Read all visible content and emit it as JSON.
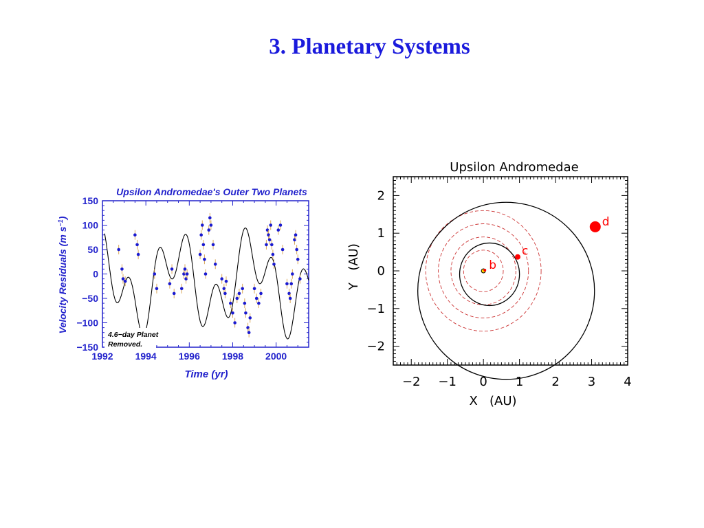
{
  "slide": {
    "title": "3. Planetary Systems"
  },
  "chart_data": [
    {
      "type": "scatter",
      "title": "Upsilon Andromedae's Outer Two Planets",
      "xlabel": "Time  (yr)",
      "ylabel": "Velocity Residuals  (m s",
      "ylabel_sup": "−1",
      "ylabel_close": ")",
      "xlim": [
        1992,
        2001.5
      ],
      "ylim": [
        -150,
        150
      ],
      "x_ticks": [
        1992,
        1994,
        1996,
        1998,
        2000
      ],
      "x_tick_labels": [
        "1992",
        "1994",
        "1996",
        "1998",
        "2000"
      ],
      "y_ticks": [
        150,
        100,
        50,
        0,
        -50,
        -100,
        -150
      ],
      "y_tick_labels": [
        "150",
        "100",
        "50",
        "0",
        "−50",
        "−100",
        "−150"
      ],
      "grid": false,
      "annotation": [
        "4.6−day Planet",
        "Removed."
      ],
      "colors": {
        "text": "#2222cc",
        "points": "#1a1ad0",
        "errorbars": "#d9a85a",
        "fit": "#000000"
      },
      "fit_model": {
        "description": "two-sinusoid model",
        "components": [
          {
            "amplitude": 56,
            "period": 1.32,
            "phase": 1.3
          },
          {
            "amplitude": 63,
            "period": 3.5,
            "phase": 0.9
          }
        ],
        "offset": -15
      },
      "series": [
        {
          "x": [
            1992.75,
            1992.9,
            1992.95,
            1993.05,
            1993.5,
            1993.6,
            1993.65,
            1994.4,
            1994.5,
            1995.1,
            1995.2,
            1995.3,
            1995.65,
            1995.75,
            1995.8,
            1995.85,
            1995.9,
            1996.5,
            1996.55,
            1996.6,
            1996.65,
            1996.7,
            1996.75,
            1996.9,
            1996.95,
            1997.0,
            1997.1,
            1997.2,
            1997.5,
            1997.6,
            1997.65,
            1997.7,
            1997.9,
            1998.0,
            1998.1,
            1998.2,
            1998.3,
            1998.45,
            1998.55,
            1998.6,
            1998.7,
            1998.75,
            1998.8,
            1999.0,
            1999.1,
            1999.2,
            1999.3,
            1999.55,
            1999.6,
            1999.65,
            1999.7,
            1999.75,
            1999.8,
            1999.85,
            1999.9,
            2000.1,
            2000.2,
            2000.3,
            2000.5,
            2000.6,
            2000.65,
            2000.7,
            2000.75,
            2000.85,
            2000.9,
            2000.95,
            2001.0,
            2001.1
          ],
          "y": [
            50,
            10,
            -10,
            -15,
            80,
            60,
            40,
            0,
            -30,
            -20,
            10,
            -40,
            -30,
            0,
            10,
            -10,
            0,
            40,
            80,
            100,
            60,
            30,
            0,
            90,
            115,
            100,
            60,
            20,
            -10,
            -30,
            -40,
            -15,
            -60,
            -80,
            -100,
            -50,
            -40,
            -30,
            -60,
            -80,
            -110,
            -120,
            -90,
            -30,
            -50,
            -60,
            -40,
            60,
            90,
            80,
            70,
            100,
            60,
            40,
            20,
            90,
            100,
            50,
            -20,
            -40,
            -50,
            -20,
            0,
            70,
            80,
            50,
            30,
            -10
          ]
        }
      ]
    },
    {
      "type": "scatter",
      "title": "Upsilon Andromedae",
      "xlabel": "X   (AU)",
      "ylabel": "Y   (AU)",
      "xlim": [
        -2.5,
        4.0
      ],
      "ylim": [
        -2.5,
        2.5
      ],
      "x_ticks": [
        -2,
        -1,
        0,
        1,
        2,
        3,
        4
      ],
      "x_tick_labels": [
        "−2",
        "−1",
        "0",
        "1",
        "2",
        "3",
        "4"
      ],
      "y_ticks": [
        2,
        1,
        0,
        -1,
        -2
      ],
      "y_tick_labels": [
        "2",
        "1",
        "0",
        "−1",
        "−2"
      ],
      "grid": false,
      "colors": {
        "orbits": "#000000",
        "planets": "#ff0000",
        "hz": "#cc3333",
        "star": "#ffdd00"
      },
      "star": {
        "x": 0,
        "y": 0
      },
      "planets": [
        {
          "label": "b",
          "x": 0.04,
          "y": 0.02,
          "size": 2
        },
        {
          "label": "c",
          "x": 0.95,
          "y": 0.37,
          "size": 4
        },
        {
          "label": "d",
          "x": 3.1,
          "y": 1.17,
          "size": 8
        }
      ],
      "orbits": [
        {
          "cx": 0.17,
          "cy": -0.09,
          "rx": 0.83,
          "ry": 0.83
        },
        {
          "cx": 0.63,
          "cy": -0.53,
          "rx": 2.45,
          "ry": 2.35
        }
      ],
      "habitable_zone_rings": [
        0.55,
        0.9,
        1.25,
        1.6
      ]
    }
  ]
}
